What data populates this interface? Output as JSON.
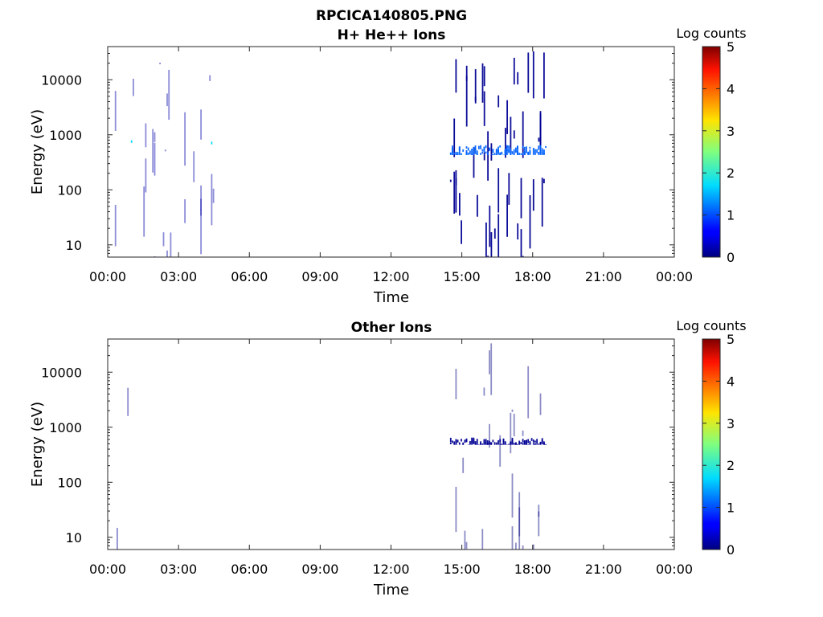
{
  "figure_title": "RPCICA140805.PNG",
  "chart_data": [
    {
      "type": "heatmap",
      "title": "H+ He++ Ions",
      "xlabel": "Time",
      "ylabel": "Energy (eV)",
      "x_ticks": [
        "00:00",
        "03:00",
        "06:00",
        "09:00",
        "12:00",
        "15:00",
        "18:00",
        "21:00",
        "00:00"
      ],
      "x_range_hours": [
        0,
        24
      ],
      "y_scale": "log",
      "y_ticks": [
        10,
        100,
        1000,
        10000
      ],
      "y_tick_labels": [
        "10",
        "100",
        "1000",
        "10000"
      ],
      "y_range": [
        6,
        40000
      ],
      "colorbar": {
        "label": "Log counts",
        "ticks": [
          "0",
          "1",
          "2",
          "3",
          "4",
          "5"
        ],
        "range": [
          0,
          5
        ],
        "colormap": "jet"
      },
      "regions": [
        {
          "start_hour": 0.3,
          "end_hour": 4.6,
          "e_min": 6,
          "e_max": 40000,
          "level": 0.2,
          "density": 0.35
        },
        {
          "start_hour": 0.3,
          "end_hour": 4.6,
          "e_min": 500,
          "e_max": 800,
          "level": 1.7,
          "density": 0.04
        },
        {
          "start_hour": 14.5,
          "end_hour": 16.0,
          "e_min": 6,
          "e_max": 35000,
          "level": 0.1,
          "density": 0.55
        },
        {
          "start_hour": 16.0,
          "end_hour": 18.6,
          "e_min": 6,
          "e_max": 40000,
          "level": 0.1,
          "density": 0.5
        },
        {
          "start_hour": 14.5,
          "end_hour": 18.6,
          "e_min": 430,
          "e_max": 650,
          "level": 1.1,
          "density": 0.9
        }
      ]
    },
    {
      "type": "heatmap",
      "title": "Other Ions",
      "xlabel": "Time",
      "ylabel": "Energy (eV)",
      "x_ticks": [
        "00:00",
        "03:00",
        "06:00",
        "09:00",
        "12:00",
        "15:00",
        "18:00",
        "21:00",
        "00:00"
      ],
      "x_range_hours": [
        0,
        24
      ],
      "y_scale": "log",
      "y_ticks": [
        10,
        100,
        1000,
        10000
      ],
      "y_tick_labels": [
        "10",
        "100",
        "1000",
        "10000"
      ],
      "y_range": [
        6,
        40000
      ],
      "colorbar": {
        "label": "Log counts",
        "ticks": [
          "0",
          "1",
          "2",
          "3",
          "4",
          "5"
        ],
        "range": [
          0,
          5
        ],
        "colormap": "jet"
      },
      "regions": [
        {
          "start_hour": 0.3,
          "end_hour": 4.6,
          "e_min": 6,
          "e_max": 40000,
          "level": 0.1,
          "density": 0.12
        },
        {
          "start_hour": 14.5,
          "end_hour": 18.6,
          "e_min": 6,
          "e_max": 35000,
          "level": 0.0,
          "density": 0.3
        },
        {
          "start_hour": 14.5,
          "end_hour": 18.6,
          "e_min": 480,
          "e_max": 650,
          "level": 0.1,
          "density": 0.85
        }
      ]
    }
  ]
}
